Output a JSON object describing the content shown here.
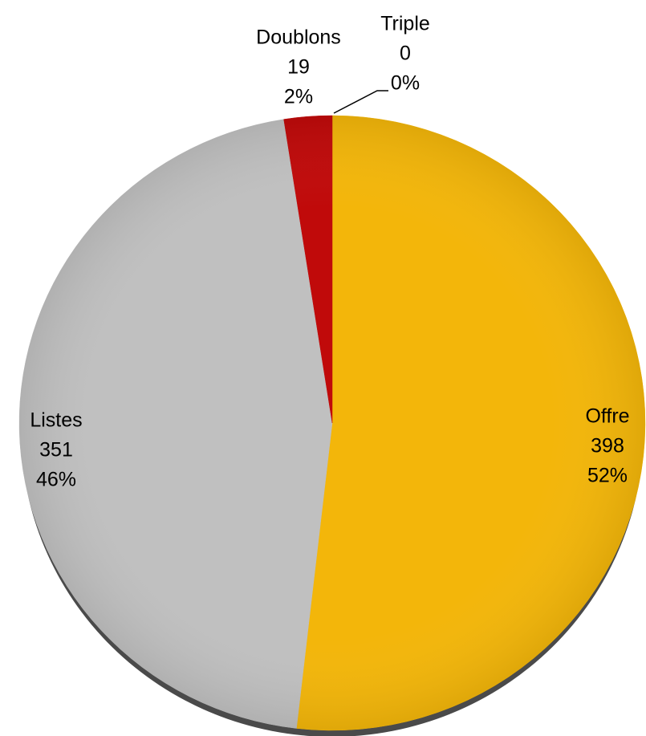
{
  "chart_data": {
    "type": "pie",
    "categories": [
      "Offre",
      "Listes",
      "Doublons",
      "Triple"
    ],
    "values": [
      398,
      351,
      19,
      0
    ],
    "percent_labels": [
      "52%",
      "46%",
      "2%",
      "0%"
    ],
    "colors": [
      "#f3b60a",
      "#c0c0c0",
      "#c00a0a",
      "#8a8a8a"
    ]
  }
}
